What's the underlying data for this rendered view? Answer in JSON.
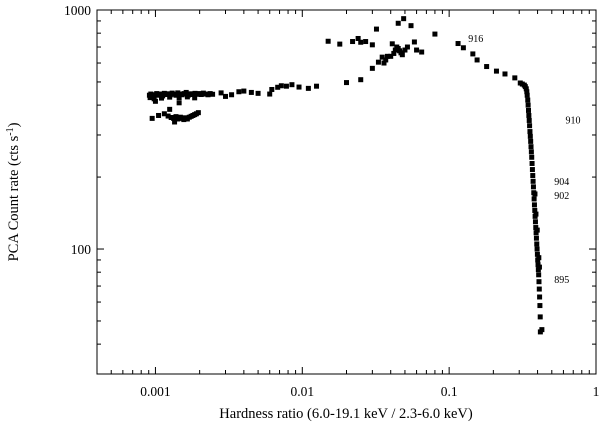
{
  "chart_data": {
    "type": "scatter",
    "xlabel": "Hardness ratio (6.0-19.1 keV / 2.3-6.0 keV)",
    "ylabel": "PCA Count rate (cts s",
    "ylabel_sup": "-1",
    "ylabel_close": ")",
    "xscale": "log",
    "yscale": "log",
    "xlim": [
      0.0004,
      1
    ],
    "ylim": [
      30,
      1000
    ],
    "x_ticks": [
      {
        "value": 0.001,
        "label": "0.001"
      },
      {
        "value": 0.01,
        "label": "0.01"
      },
      {
        "value": 0.1,
        "label": "0.1"
      },
      {
        "value": 1,
        "label": "1"
      }
    ],
    "y_ticks": [
      {
        "value": 100,
        "label": "100"
      },
      {
        "value": 1000,
        "label": "1000"
      }
    ],
    "grid": false,
    "legend": "none",
    "marker_color": "#000000",
    "points": [
      [
        0.00091,
        440
      ],
      [
        0.00093,
        445
      ],
      [
        0.00096,
        438
      ],
      [
        0.00099,
        442
      ],
      [
        0.00102,
        447
      ],
      [
        0.00105,
        440
      ],
      [
        0.00108,
        445
      ],
      [
        0.00112,
        437
      ],
      [
        0.00115,
        448
      ],
      [
        0.00118,
        443
      ],
      [
        0.00122,
        446
      ],
      [
        0.00126,
        441
      ],
      [
        0.0013,
        449
      ],
      [
        0.00134,
        444
      ],
      [
        0.00138,
        440
      ],
      [
        0.00142,
        450
      ],
      [
        0.00147,
        445
      ],
      [
        0.00152,
        442
      ],
      [
        0.00157,
        447
      ],
      [
        0.00162,
        452
      ],
      [
        0.00168,
        441
      ],
      [
        0.00174,
        446
      ],
      [
        0.0018,
        443
      ],
      [
        0.00186,
        448
      ],
      [
        0.00192,
        444
      ],
      [
        0.00198,
        447
      ],
      [
        0.00205,
        443
      ],
      [
        0.00212,
        449
      ],
      [
        0.0022,
        445
      ],
      [
        0.00228,
        442
      ],
      [
        0.00236,
        447
      ],
      [
        0.00245,
        444
      ],
      [
        0.00092,
        430
      ],
      [
        0.00098,
        425
      ],
      [
        0.0011,
        428
      ],
      [
        0.00125,
        432
      ],
      [
        0.00145,
        430
      ],
      [
        0.00165,
        433
      ],
      [
        0.00185,
        429
      ],
      [
        0.00095,
        352
      ],
      [
        0.00105,
        362
      ],
      [
        0.00115,
        368
      ],
      [
        0.00122,
        360
      ],
      [
        0.00128,
        355
      ],
      [
        0.00133,
        352
      ],
      [
        0.00138,
        358
      ],
      [
        0.00142,
        350
      ],
      [
        0.00148,
        356
      ],
      [
        0.00152,
        352
      ],
      [
        0.00156,
        348
      ],
      [
        0.0016,
        354
      ],
      [
        0.00165,
        350
      ],
      [
        0.0017,
        356
      ],
      [
        0.00175,
        359
      ],
      [
        0.0018,
        362
      ],
      [
        0.00185,
        365
      ],
      [
        0.0019,
        368
      ],
      [
        0.00196,
        372
      ],
      [
        0.00125,
        384
      ],
      [
        0.00135,
        340
      ],
      [
        0.001,
        415
      ],
      [
        0.00145,
        409
      ],
      [
        0.0028,
        450
      ],
      [
        0.003,
        435
      ],
      [
        0.0033,
        442
      ],
      [
        0.0037,
        455
      ],
      [
        0.004,
        458
      ],
      [
        0.0045,
        452
      ],
      [
        0.005,
        448
      ],
      [
        0.006,
        445
      ],
      [
        0.0062,
        465
      ],
      [
        0.0068,
        475
      ],
      [
        0.0072,
        482
      ],
      [
        0.0078,
        480
      ],
      [
        0.0085,
        487
      ],
      [
        0.0095,
        476
      ],
      [
        0.011,
        470
      ],
      [
        0.0125,
        480
      ],
      [
        0.015,
        740
      ],
      [
        0.018,
        720
      ],
      [
        0.02,
        497
      ],
      [
        0.022,
        738
      ],
      [
        0.024,
        760
      ],
      [
        0.025,
        733
      ],
      [
        0.027,
        738
      ],
      [
        0.03,
        715
      ],
      [
        0.032,
        832
      ],
      [
        0.025,
        511
      ],
      [
        0.03,
        570
      ],
      [
        0.033,
        605
      ],
      [
        0.035,
        635
      ],
      [
        0.036,
        600
      ],
      [
        0.037,
        618
      ],
      [
        0.038,
        640
      ],
      [
        0.04,
        640
      ],
      [
        0.041,
        722
      ],
      [
        0.042,
        658
      ],
      [
        0.043,
        680
      ],
      [
        0.044,
        700
      ],
      [
        0.045,
        690
      ],
      [
        0.046,
        675
      ],
      [
        0.047,
        662
      ],
      [
        0.048,
        650
      ],
      [
        0.05,
        680
      ],
      [
        0.052,
        700
      ],
      [
        0.055,
        860
      ],
      [
        0.058,
        735
      ],
      [
        0.06,
        680
      ],
      [
        0.065,
        667
      ],
      [
        0.045,
        880
      ],
      [
        0.049,
        920
      ],
      [
        0.08,
        793
      ],
      [
        0.115,
        724
      ],
      [
        0.125,
        695
      ],
      [
        0.145,
        655
      ],
      [
        0.155,
        618
      ],
      [
        0.18,
        580
      ],
      [
        0.21,
        555
      ],
      [
        0.24,
        540
      ],
      [
        0.28,
        520
      ],
      [
        0.305,
        495
      ],
      [
        0.315,
        490
      ],
      [
        0.325,
        485
      ],
      [
        0.33,
        478
      ],
      [
        0.335,
        468
      ],
      [
        0.338,
        455
      ],
      [
        0.34,
        440
      ],
      [
        0.343,
        420
      ],
      [
        0.345,
        400
      ],
      [
        0.347,
        380
      ],
      [
        0.349,
        362
      ],
      [
        0.351,
        345
      ],
      [
        0.353,
        328
      ],
      [
        0.355,
        310
      ],
      [
        0.357,
        296
      ],
      [
        0.359,
        282
      ],
      [
        0.361,
        268
      ],
      [
        0.363,
        255
      ],
      [
        0.365,
        242
      ],
      [
        0.367,
        228
      ],
      [
        0.369,
        215
      ],
      [
        0.371,
        203
      ],
      [
        0.373,
        192
      ],
      [
        0.375,
        182
      ],
      [
        0.377,
        172
      ],
      [
        0.379,
        162
      ],
      [
        0.381,
        153
      ],
      [
        0.383,
        145
      ],
      [
        0.385,
        137
      ],
      [
        0.387,
        130
      ],
      [
        0.389,
        123
      ],
      [
        0.391,
        117
      ],
      [
        0.393,
        111
      ],
      [
        0.395,
        105
      ],
      [
        0.397,
        100
      ],
      [
        0.399,
        95
      ],
      [
        0.401,
        90
      ],
      [
        0.403,
        86
      ],
      [
        0.405,
        82
      ],
      [
        0.407,
        78
      ],
      [
        0.409,
        73
      ],
      [
        0.411,
        68
      ],
      [
        0.413,
        63
      ],
      [
        0.415,
        58
      ],
      [
        0.417,
        52
      ],
      [
        0.418,
        45
      ],
      [
        0.428,
        46
      ],
      [
        0.384,
        170
      ],
      [
        0.39,
        140
      ],
      [
        0.398,
        120
      ],
      [
        0.408,
        92
      ],
      [
        0.412,
        84
      ]
    ],
    "annotations": [
      {
        "text": "916",
        "x": 0.135,
        "y": 735
      },
      {
        "text": "910",
        "x": 0.62,
        "y": 335
      },
      {
        "text": "904",
        "x": 0.52,
        "y": 185
      },
      {
        "text": "902",
        "x": 0.52,
        "y": 162
      },
      {
        "text": "895",
        "x": 0.52,
        "y": 72
      }
    ]
  }
}
